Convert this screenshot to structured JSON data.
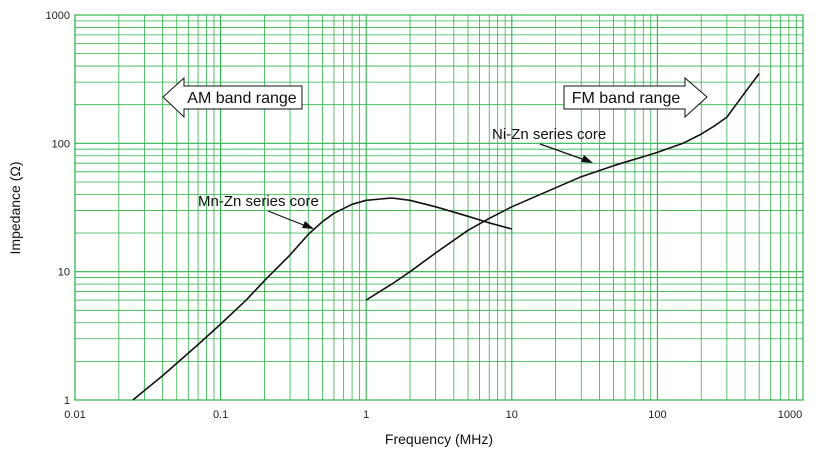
{
  "chart_data": {
    "type": "line",
    "title": "",
    "xlabel": "Frequency (MHz)",
    "ylabel": "Impedance (Ω)",
    "xscale": "log",
    "yscale": "log",
    "xlim": [
      0.01,
      1000
    ],
    "ylim": [
      1,
      1000
    ],
    "grid": true,
    "x_ticks": [
      "0.01",
      "0.1",
      "1",
      "10",
      "100",
      "1000"
    ],
    "y_ticks": [
      "1",
      "10",
      "100",
      "1000"
    ],
    "colors": {
      "grid": "#2fb34a",
      "line": "#111111"
    },
    "series": [
      {
        "name": "Mn-Zn series core",
        "points": [
          [
            0.025,
            1.0
          ],
          [
            0.04,
            1.55
          ],
          [
            0.07,
            2.7
          ],
          [
            0.1,
            3.9
          ],
          [
            0.15,
            6.0
          ],
          [
            0.2,
            8.5
          ],
          [
            0.3,
            13.5
          ],
          [
            0.4,
            19.5
          ],
          [
            0.5,
            24.5
          ],
          [
            0.6,
            28.5
          ],
          [
            0.8,
            33.5
          ],
          [
            1.0,
            36.0
          ],
          [
            1.5,
            37.5
          ],
          [
            2.0,
            36.0
          ],
          [
            3.0,
            32.0
          ],
          [
            5.0,
            27.0
          ],
          [
            7.0,
            24.0
          ],
          [
            10.0,
            21.5
          ]
        ]
      },
      {
        "name": "Ni-Zn series core",
        "points": [
          [
            1.0,
            6.0
          ],
          [
            1.5,
            8.0
          ],
          [
            2.0,
            10.0
          ],
          [
            3.0,
            14.0
          ],
          [
            5.0,
            21.0
          ],
          [
            7.0,
            26.0
          ],
          [
            10.0,
            32.0
          ],
          [
            20.0,
            45.0
          ],
          [
            30.0,
            55.0
          ],
          [
            50.0,
            67.0
          ],
          [
            100.0,
            85.0
          ],
          [
            150.0,
            100.0
          ],
          [
            200.0,
            118.0
          ],
          [
            250.0,
            138.0
          ],
          [
            300.0,
            160.0
          ],
          [
            400.0,
            250.0
          ],
          [
            500.0,
            350.0
          ]
        ]
      }
    ],
    "annotations": [
      {
        "text": "Mn-Zn series core",
        "series": 0,
        "target": [
          0.5,
          21.0
        ]
      },
      {
        "text": "Ni-Zn series core",
        "series": 1,
        "target": [
          25.0,
          60.0
        ]
      }
    ],
    "bands": [
      {
        "label": "AM band range",
        "direction": "left"
      },
      {
        "label": "FM band range",
        "direction": "right"
      }
    ]
  }
}
